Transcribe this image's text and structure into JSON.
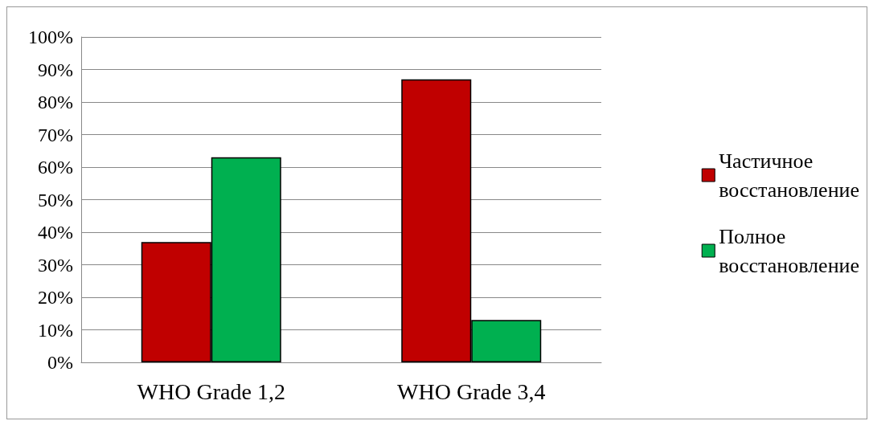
{
  "chart_data": {
    "type": "bar",
    "categories": [
      "WHO Grade 1,2",
      "WHO Grade 3,4"
    ],
    "series": [
      {
        "name": "Частичное восстановление",
        "color": "#c00000",
        "values": [
          37,
          87
        ]
      },
      {
        "name": "Полное восстановление",
        "color": "#00b050",
        "values": [
          63,
          13
        ]
      }
    ],
    "ylim": [
      0,
      100
    ],
    "yticks": [
      {
        "value": 0,
        "label": "0%"
      },
      {
        "value": 10,
        "label": "10%"
      },
      {
        "value": 20,
        "label": "20%"
      },
      {
        "value": 30,
        "label": "30%"
      },
      {
        "value": 40,
        "label": "40%"
      },
      {
        "value": 50,
        "label": "50%"
      },
      {
        "value": 60,
        "label": "60%"
      },
      {
        "value": 70,
        "label": "70%"
      },
      {
        "value": 80,
        "label": "80%"
      },
      {
        "value": 90,
        "label": "90%"
      },
      {
        "value": 100,
        "label": "100%"
      }
    ],
    "grid": "y",
    "legend": "right"
  }
}
